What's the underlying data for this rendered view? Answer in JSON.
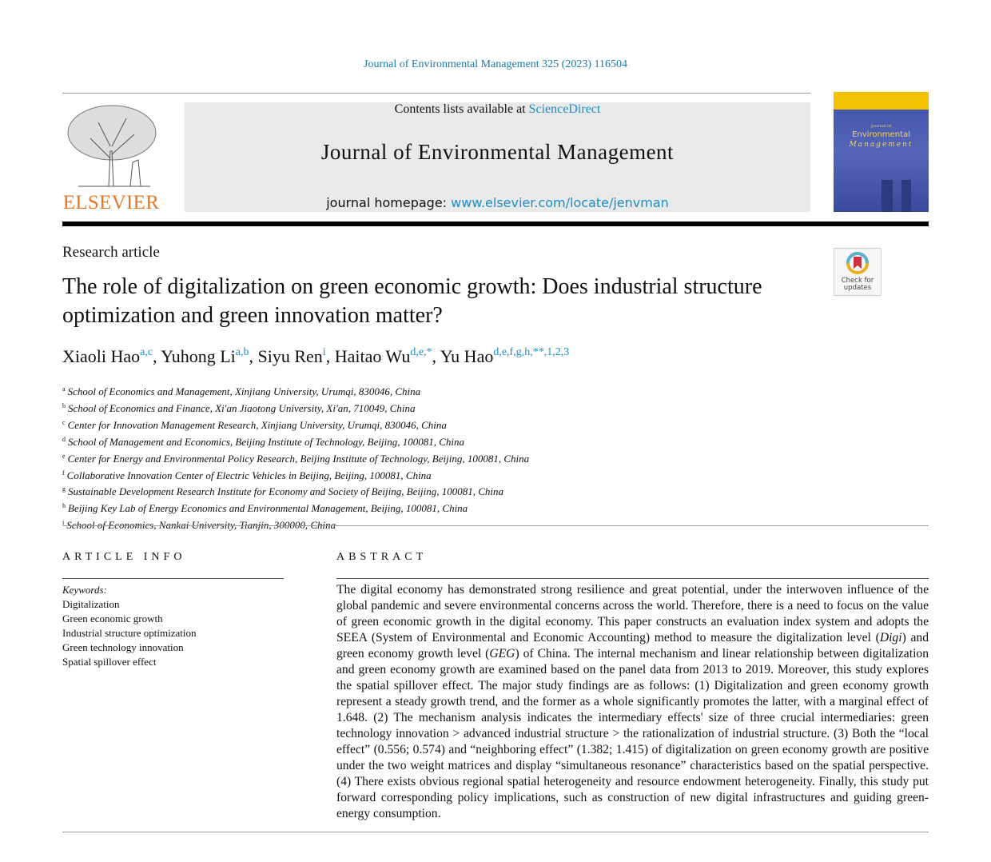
{
  "citation": "Journal of Environmental Management 325 (2023) 116504",
  "masthead": {
    "contents_prefix": "Contents lists available at ",
    "contents_link": "ScienceDirect",
    "journal_name": "Journal of Environmental Management",
    "homepage_prefix": "journal homepage: ",
    "homepage_link": "www.elsevier.com/locate/jenvman",
    "publisher_logo": "ELSEVIER",
    "cover": {
      "line1": "Journal of",
      "line2": "Environmental",
      "line3": "Management"
    }
  },
  "check_updates": {
    "line1": "Check for",
    "line2": "updates"
  },
  "article_type": "Research article",
  "title": "The role of digitalization on green economic growth: Does industrial structure optimization and green innovation matter?",
  "authors": [
    {
      "name": "Xiaoli Hao",
      "sup": "a,c",
      "sep": ", "
    },
    {
      "name": "Yuhong Li",
      "sup": "a,b",
      "sep": ", "
    },
    {
      "name": "Siyu Ren",
      "sup": "i",
      "sep": ", "
    },
    {
      "name": "Haitao Wu",
      "sup": "d,e,*",
      "sep": ", "
    },
    {
      "name": "Yu Hao",
      "sup": "d,e,f,g,h,**,1,2,3",
      "sep": ""
    }
  ],
  "affiliations": [
    {
      "key": "a",
      "text": "School of Economics and Management, Xinjiang University, Urumqi, 830046, China"
    },
    {
      "key": "b",
      "text": "School of Economics and Finance, Xi'an Jiaotong University, Xi'an, 710049, China"
    },
    {
      "key": "c",
      "text": "Center for Innovation Management Research, Xinjiang University, Urumqi, 830046, China"
    },
    {
      "key": "d",
      "text": "School of Management and Economics, Beijing Institute of Technology, Beijing, 100081, China"
    },
    {
      "key": "e",
      "text": "Center for Energy and Environmental Policy Research, Beijing Institute of Technology, Beijing, 100081, China"
    },
    {
      "key": "f",
      "text": "Collaborative Innovation Center of Electric Vehicles in Beijing, Beijing, 100081, China"
    },
    {
      "key": "g",
      "text": "Sustainable Development Research Institute for Economy and Society of Beijing, Beijing, 100081, China"
    },
    {
      "key": "h",
      "text": "Beijing Key Lab of Energy Economics and Environmental Management, Beijing, 100081, China"
    },
    {
      "key": "i",
      "text": "School of Economics, Nankai University, Tianjin, 300000, China"
    }
  ],
  "article_info": {
    "heading": "ARTICLE INFO",
    "keywords_label": "Keywords:",
    "keywords": [
      "Digitalization",
      "Green economic growth",
      "Industrial structure optimization",
      "Green technology innovation",
      "Spatial spillover effect"
    ]
  },
  "abstract": {
    "heading": "ABSTRACT",
    "p1": "The digital economy has demonstrated strong resilience and great potential, under the interwoven influence of the global pandemic and severe environmental concerns across the world. Therefore, there is a need to focus on the value of green economic growth in the digital economy. This paper constructs an evaluation index system and adopts the SEEA (System of Environmental and Economic Accounting) method to measure the digitalization level (",
    "digi": "Digi",
    "p2": ") and green economy growth level (",
    "geg": "GEG",
    "p3": ") of China. The internal mechanism and linear relationship between digitalization and green economy growth are examined based on the panel data from 2013 to 2019. Moreover, this study explores the spatial spillover effect. The major study findings are as follows: (1) Digitalization and green economy growth represent a steady growth trend, and the former as a whole significantly promotes the latter, with a marginal effect of 1.648. (2) The mechanism analysis indicates the intermediary effects' size of three crucial intermediaries: green technology innovation > advanced industrial structure > the rationalization of industrial structure. (3) Both the “local effect” (0.556; 0.574) and “neighboring effect” (1.382; 1.415) of digitalization on green economy growth are positive under the two weight matrices and display “simultaneous resonance” characteristics based on the spatial perspective. (4) There exists obvious regional spatial heteroge­neity and resource endowment heterogeneity. Finally, this study put forward corresponding policy implications, such as construction of new digital infrastructures and guiding green-energy consumption."
  }
}
